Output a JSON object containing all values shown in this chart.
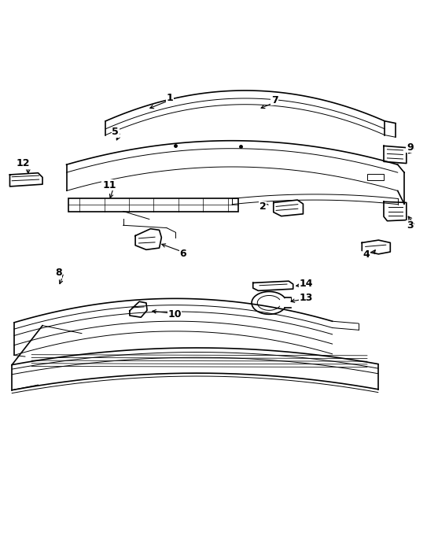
{
  "background_color": "#ffffff",
  "line_color": "#000000",
  "label_color": "#000000",
  "fig_width": 5.57,
  "fig_height": 6.9,
  "dpi": 100
}
